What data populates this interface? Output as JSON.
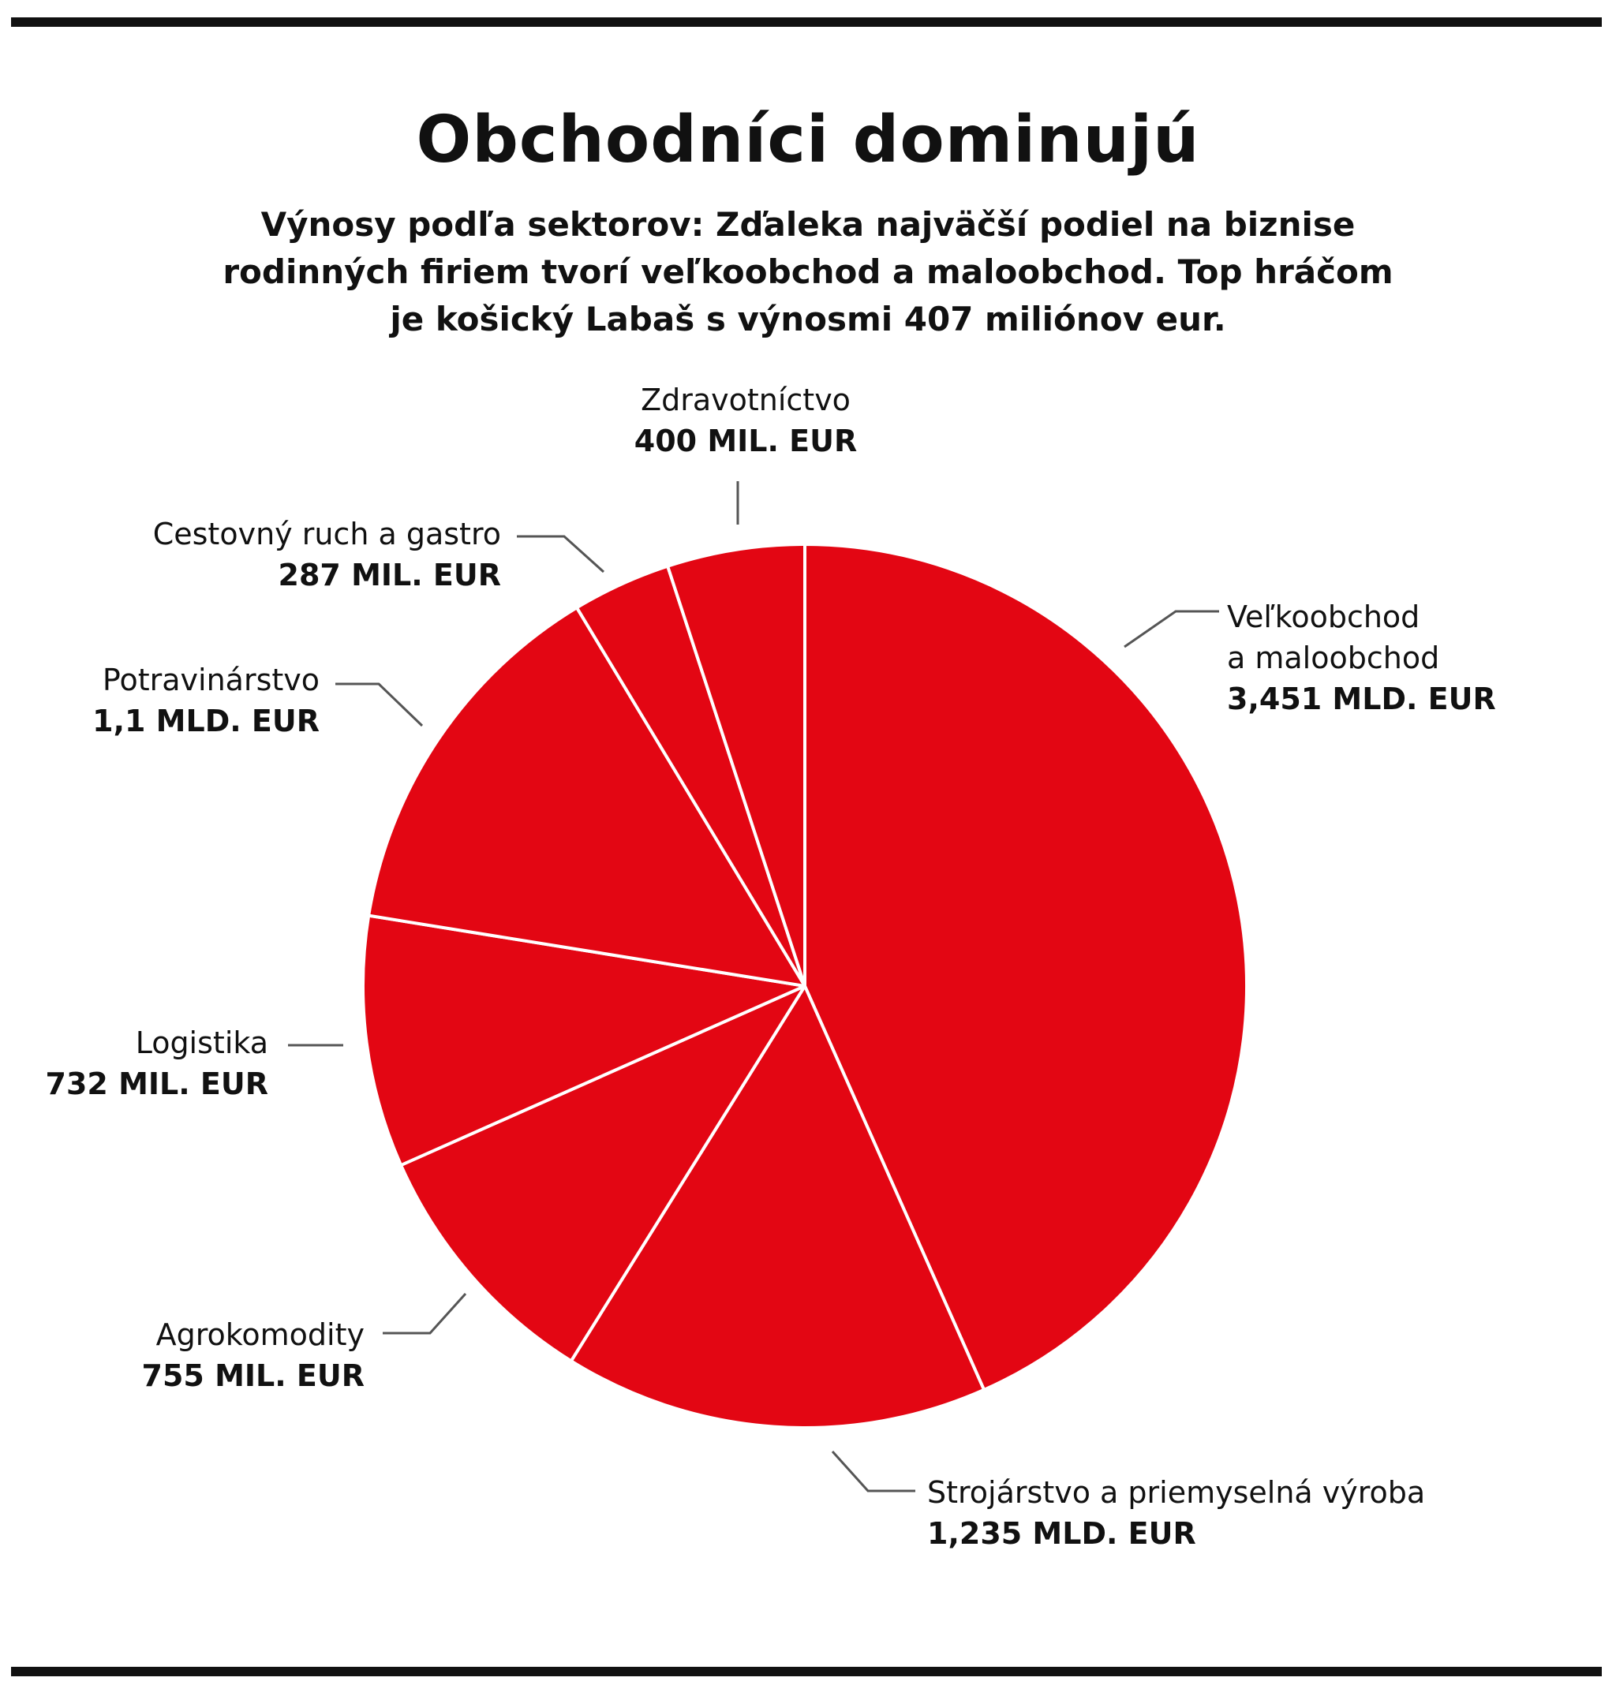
{
  "header": {
    "title": "Obchodníci dominujú",
    "subtitle": "Výnosy podľa sektorov: Zďaleka najväčší podiel na biznise rodinných firiem tvorí veľkoobchod a maloobchod. Top hráčom je košický Labaš s výnosmi 407 miliónov eur."
  },
  "chart_data": {
    "type": "pie",
    "title": "Obchodníci dominujú",
    "unit": "mil. EUR",
    "slice_color": "#e30613",
    "separator_color": "#ffffff",
    "direction": "clockwise-from-top",
    "slices": [
      {
        "id": "velkoobchod",
        "name_lines": [
          "Veľkoobchod",
          "a maloobchod"
        ],
        "value_label": "3,451 MLD. EUR",
        "value": 3451
      },
      {
        "id": "strojarstvo",
        "name_lines": [
          "Strojárstvo a priemyselná výroba"
        ],
        "value_label": "1,235 MLD. EUR",
        "value": 1235
      },
      {
        "id": "agrokomodity",
        "name_lines": [
          "Agrokomodity"
        ],
        "value_label": "755 MIL. EUR",
        "value": 755
      },
      {
        "id": "logistika",
        "name_lines": [
          "Logistika"
        ],
        "value_label": "732 MIL. EUR",
        "value": 732
      },
      {
        "id": "potravinarstvo",
        "name_lines": [
          "Potravinárstvo"
        ],
        "value_label": "1,1 MLD. EUR",
        "value": 1100
      },
      {
        "id": "cestovny-ruch",
        "name_lines": [
          "Cestovný ruch a gastro"
        ],
        "value_label": "287 MIL. EUR",
        "value": 287
      },
      {
        "id": "zdravotnictvo",
        "name_lines": [
          "Zdravotníctvo"
        ],
        "value_label": "400  MIL. EUR",
        "value": 400
      }
    ]
  }
}
